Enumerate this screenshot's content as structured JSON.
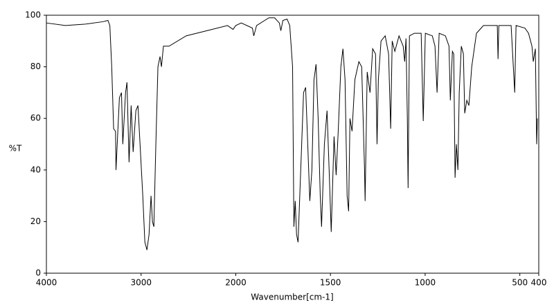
{
  "chart_data": {
    "type": "line",
    "xlabel": "Wavenumber[cm-1]",
    "ylabel": "%T",
    "xlim": [
      4000,
      400
    ],
    "ylim": [
      0,
      100
    ],
    "x_scale_change": 2000,
    "xticks": [
      4000,
      3000,
      2000,
      1500,
      1000,
      500,
      400
    ],
    "yticks": [
      0,
      20,
      40,
      60,
      80,
      100
    ],
    "series": [
      {
        "color": "#000000",
        "x": [
          4000,
          3800,
          3600,
          3400,
          3350,
          3330,
          3310,
          3290,
          3270,
          3265,
          3229,
          3207,
          3193,
          3164,
          3149,
          3127,
          3105,
          3084,
          3055,
          3033,
          3011,
          2982,
          2960,
          2938,
          2916,
          2895,
          2880,
          2865,
          2844,
          2822,
          2800,
          2785,
          2764,
          2705,
          2524,
          2305,
          2087,
          2029,
          2000,
          1971,
          1912,
          1905,
          1890,
          1825,
          1795,
          1770,
          1762,
          1751,
          1729,
          1715,
          1700,
          1693,
          1686,
          1679,
          1671,
          1657,
          1642,
          1631,
          1620,
          1609,
          1598,
          1587,
          1576,
          1565,
          1554,
          1547,
          1532,
          1518,
          1507,
          1496,
          1481,
          1470,
          1459,
          1445,
          1434,
          1423,
          1412,
          1404,
          1397,
          1386,
          1371,
          1350,
          1335,
          1320,
          1317,
          1306,
          1291,
          1277,
          1262,
          1254,
          1247,
          1233,
          1211,
          1193,
          1182,
          1174,
          1160,
          1138,
          1116,
          1108,
          1101,
          1094,
          1090,
          1083,
          1057,
          1021,
          1010,
          999,
          962,
          948,
          937,
          926,
          893,
          874,
          867,
          856,
          849,
          842,
          835,
          827,
          820,
          809,
          798,
          791,
          780,
          769,
          754,
          729,
          692,
          619,
          615,
          611,
          546,
          527,
          520,
          473,
          454,
          436,
          429,
          418,
          411,
          407
        ],
        "values": [
          97,
          96,
          96.5,
          97.5,
          98,
          96,
          80,
          56,
          55,
          40,
          68,
          70,
          50,
          70,
          74,
          43,
          65,
          47,
          63,
          65,
          50,
          30,
          12,
          9,
          15,
          30,
          20,
          18,
          50,
          80,
          84,
          80,
          88,
          88,
          92,
          94,
          96,
          94.5,
          96,
          97,
          95,
          92,
          96,
          99,
          99,
          97,
          94,
          98,
          98.5,
          96,
          80,
          18,
          28,
          15,
          12,
          40,
          70,
          72,
          50,
          28,
          40,
          75,
          81,
          60,
          30,
          18,
          50,
          63,
          40,
          16,
          53,
          38,
          55,
          80,
          87,
          75,
          30,
          24,
          60,
          55,
          75,
          82,
          80,
          40,
          28,
          78,
          70,
          87,
          85,
          50,
          75,
          90,
          92,
          85,
          56,
          90,
          86,
          92,
          88,
          82,
          91,
          60,
          33,
          92,
          93,
          93,
          59,
          93,
          92,
          88,
          70,
          93,
          92,
          88,
          67,
          86,
          85,
          37,
          50,
          40,
          70,
          88,
          85,
          62,
          67,
          65,
          80,
          93,
          96,
          96,
          83,
          96,
          96,
          70,
          96,
          95,
          93,
          88,
          82,
          87,
          50,
          60
        ]
      }
    ]
  }
}
